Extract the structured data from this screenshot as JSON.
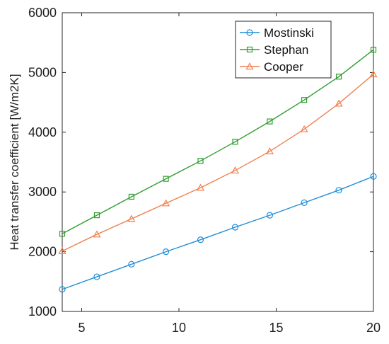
{
  "chart_data": {
    "type": "line",
    "title": "",
    "xlabel": "",
    "ylabel": "Heat transfer coefficient [W/m2K]",
    "xlim": [
      4,
      20
    ],
    "ylim": [
      1000,
      6000
    ],
    "x_ticks": [
      5,
      10,
      15,
      20
    ],
    "y_ticks": [
      1000,
      2000,
      3000,
      4000,
      5000,
      6000
    ],
    "grid": false,
    "legend_position": "top-right",
    "x": [
      4.0,
      5.78,
      7.56,
      9.33,
      11.11,
      12.89,
      14.67,
      16.44,
      18.22,
      20.0
    ],
    "series": [
      {
        "name": "Mostinski",
        "color": "#1f8ed6",
        "marker": "circle",
        "values": [
          1370,
          1580,
          1790,
          2000,
          2200,
          2410,
          2610,
          2820,
          3030,
          3260
        ]
      },
      {
        "name": "Stephan",
        "color": "#2e9e2e",
        "marker": "square",
        "values": [
          2300,
          2610,
          2920,
          3220,
          3520,
          3840,
          4180,
          4540,
          4930,
          5380
        ]
      },
      {
        "name": "Cooper",
        "color": "#f08050",
        "marker": "triangle",
        "values": [
          2010,
          2290,
          2550,
          2810,
          3070,
          3360,
          3680,
          4050,
          4480,
          4970
        ]
      }
    ]
  }
}
